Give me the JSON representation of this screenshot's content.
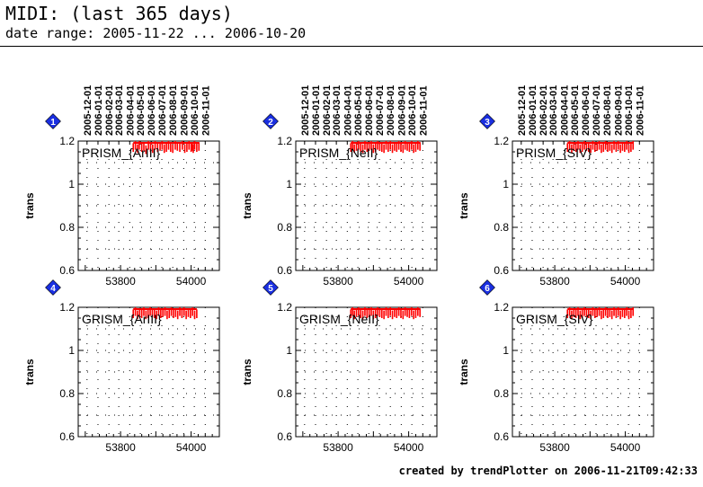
{
  "header": {
    "title": "MIDI: (last 365 days)",
    "subtitle": "date range: 2005-11-22 ... 2006-10-20"
  },
  "footer": {
    "text": "created by trendPlotter on 2006-11-21T09:42:33"
  },
  "colors": {
    "data": "#ff0000",
    "badge": "#1a2fe0",
    "axis": "#000000"
  },
  "chart_data": [
    {
      "type": "scatter",
      "badge": "1",
      "label": "PRISM_{ArIII}",
      "xlabel": "",
      "ylabel": "trans",
      "xlim": [
        53680,
        54080
      ],
      "ylim": [
        0.6,
        1.2
      ],
      "xticks": [
        53800,
        54000
      ],
      "yticks": [
        0.6,
        0.8,
        1,
        1.2
      ],
      "yticklabels": [
        "0.6",
        "0.8",
        "1",
        "1.2"
      ],
      "date_ticks": [
        "2005-12-01",
        "2006-01-01",
        "2006-02-01",
        "2006-03-01",
        "2006-04-01",
        "2006-05-01",
        "2006-06-01",
        "2006-07-01",
        "2006-08-01",
        "2006-09-01",
        "2006-10-01",
        "2006-11-01"
      ],
      "date_tick_mjd": [
        53705,
        53736,
        53767,
        53795,
        53826,
        53856,
        53887,
        53917,
        53948,
        53979,
        54009,
        54040
      ],
      "x": [
        53836,
        53842,
        53848,
        53853,
        53860,
        53866,
        53872,
        53879,
        53885,
        53891,
        53898,
        53905,
        53912,
        53918,
        53924,
        53930,
        53936,
        53942,
        53948,
        53955,
        53961,
        53968,
        53975,
        53982,
        53988,
        53994,
        54000,
        54003,
        54006,
        54010,
        54016,
        54022
      ],
      "y": [
        1.17,
        1.18,
        1.165,
        1.18,
        1.17,
        1.175,
        1.16,
        1.18,
        1.17,
        1.165,
        1.18,
        1.17,
        1.175,
        1.18,
        1.165,
        1.17,
        1.18,
        1.17,
        1.165,
        1.18,
        1.175,
        1.17,
        1.18,
        1.165,
        1.17,
        1.18,
        1.17,
        1.175,
        1.165,
        1.18,
        1.17,
        1.175
      ],
      "grid": true
    },
    {
      "type": "scatter",
      "badge": "2",
      "label": "PRISM_{NeII}",
      "xlabel": "",
      "ylabel": "trans",
      "xlim": [
        53680,
        54080
      ],
      "ylim": [
        0.6,
        1.2
      ],
      "xticks": [
        53800,
        54000
      ],
      "yticks": [
        0.6,
        0.8,
        1,
        1.2
      ],
      "yticklabels": [
        "0.6",
        "0.8",
        "1",
        "1.2"
      ],
      "date_ticks": [
        "2005-12-01",
        "2006-01-01",
        "2006-02-01",
        "2006-03-01",
        "2006-04-01",
        "2006-05-01",
        "2006-06-01",
        "2006-07-01",
        "2006-08-01",
        "2006-09-01",
        "2006-10-01",
        "2006-11-01"
      ],
      "date_tick_mjd": [
        53705,
        53736,
        53767,
        53795,
        53826,
        53856,
        53887,
        53917,
        53948,
        53979,
        54009,
        54040
      ],
      "x": [
        53836,
        53841,
        53846,
        53852,
        53858,
        53864,
        53870,
        53876,
        53882,
        53888,
        53894,
        53900,
        53906,
        53912,
        53918,
        53924,
        53930,
        53936,
        53942,
        53948,
        53954,
        53960,
        53966,
        53972,
        53978,
        53984,
        53990,
        53996,
        54002,
        54008,
        54014,
        54020,
        54026,
        54032
      ],
      "y": [
        1.17,
        1.18,
        1.165,
        1.175,
        1.18,
        1.17,
        1.165,
        1.18,
        1.17,
        1.175,
        1.18,
        1.165,
        1.17,
        1.18,
        1.175,
        1.17,
        1.165,
        1.18,
        1.17,
        1.18,
        1.165,
        1.175,
        1.17,
        1.18,
        1.17,
        1.165,
        1.18,
        1.175,
        1.17,
        1.18,
        1.165,
        1.17,
        1.18,
        1.175
      ],
      "grid": true
    },
    {
      "type": "scatter",
      "badge": "3",
      "label": "PRISM_{SIV}",
      "xlabel": "",
      "ylabel": "trans",
      "xlim": [
        53680,
        54080
      ],
      "ylim": [
        0.6,
        1.2
      ],
      "xticks": [
        53800,
        54000
      ],
      "yticks": [
        0.6,
        0.8,
        1,
        1.2
      ],
      "yticklabels": [
        "0.6",
        "0.8",
        "1",
        "1.2"
      ],
      "date_ticks": [
        "2005-12-01",
        "2006-01-01",
        "2006-02-01",
        "2006-03-01",
        "2006-04-01",
        "2006-05-01",
        "2006-06-01",
        "2006-07-01",
        "2006-08-01",
        "2006-09-01",
        "2006-10-01",
        "2006-11-01"
      ],
      "date_tick_mjd": [
        53705,
        53736,
        53767,
        53795,
        53826,
        53856,
        53887,
        53917,
        53948,
        53979,
        54009,
        54040
      ],
      "x": [
        53836,
        53842,
        53848,
        53854,
        53860,
        53866,
        53872,
        53878,
        53884,
        53890,
        53896,
        53902,
        53908,
        53914,
        53920,
        53926,
        53932,
        53938,
        53944,
        53950,
        53956,
        53962,
        53968,
        53974,
        53980,
        53986,
        53992,
        53998,
        54004,
        54010,
        54016,
        54022
      ],
      "y": [
        1.17,
        1.18,
        1.165,
        1.175,
        1.17,
        1.18,
        1.165,
        1.17,
        1.18,
        1.175,
        1.17,
        1.165,
        1.18,
        1.17,
        1.175,
        1.18,
        1.165,
        1.17,
        1.18,
        1.17,
        1.175,
        1.165,
        1.18,
        1.17,
        1.18,
        1.165,
        1.175,
        1.17,
        1.18,
        1.165,
        1.17,
        1.18
      ],
      "grid": true
    },
    {
      "type": "scatter",
      "badge": "4",
      "label": "GRISM_{ArIII}",
      "xlabel": "",
      "ylabel": "trans",
      "xlim": [
        53680,
        54080
      ],
      "ylim": [
        0.6,
        1.2
      ],
      "xticks": [
        53800,
        54000
      ],
      "yticks": [
        0.6,
        0.8,
        1,
        1.2
      ],
      "yticklabels": [
        "0.6",
        "0.8",
        "1",
        "1.2"
      ],
      "date_ticks": [],
      "date_tick_mjd": [
        53705,
        53736,
        53767,
        53795,
        53826,
        53856,
        53887,
        53917,
        53948,
        53979,
        54009,
        54040
      ],
      "x": [
        53836,
        53842,
        53848,
        53854,
        53860,
        53866,
        53872,
        53878,
        53884,
        53890,
        53896,
        53902,
        53908,
        53914,
        53920,
        53926,
        53932,
        53938,
        53944,
        53950,
        53956,
        53962,
        53968,
        53974,
        53980,
        53986,
        53992,
        53998,
        54004,
        54010,
        54016
      ],
      "y": [
        1.17,
        1.18,
        1.165,
        1.175,
        1.17,
        1.18,
        1.165,
        1.17,
        1.18,
        1.175,
        1.17,
        1.165,
        1.18,
        1.17,
        1.175,
        1.18,
        1.165,
        1.17,
        1.18,
        1.17,
        1.175,
        1.165,
        1.18,
        1.17,
        1.18,
        1.165,
        1.175,
        1.17,
        1.18,
        1.165,
        1.17
      ],
      "grid": true
    },
    {
      "type": "scatter",
      "badge": "5",
      "label": "GRISM_{NeII}",
      "xlabel": "",
      "ylabel": "trans",
      "xlim": [
        53680,
        54080
      ],
      "ylim": [
        0.6,
        1.2
      ],
      "xticks": [
        53800,
        54000
      ],
      "yticks": [
        0.6,
        0.8,
        1,
        1.2
      ],
      "yticklabels": [
        "0.6",
        "0.8",
        "1",
        "1.2"
      ],
      "date_ticks": [],
      "date_tick_mjd": [
        53705,
        53736,
        53767,
        53795,
        53826,
        53856,
        53887,
        53917,
        53948,
        53979,
        54009,
        54040
      ],
      "x": [
        53836,
        53841,
        53846,
        53852,
        53858,
        53864,
        53870,
        53876,
        53882,
        53888,
        53894,
        53900,
        53906,
        53912,
        53918,
        53924,
        53930,
        53936,
        53942,
        53948,
        53954,
        53960,
        53966,
        53972,
        53978,
        53984,
        53990,
        53996,
        54002,
        54008,
        54014,
        54020,
        54026,
        54032
      ],
      "y": [
        1.17,
        1.18,
        1.165,
        1.175,
        1.18,
        1.17,
        1.165,
        1.18,
        1.17,
        1.175,
        1.18,
        1.165,
        1.17,
        1.18,
        1.175,
        1.17,
        1.165,
        1.18,
        1.17,
        1.18,
        1.165,
        1.175,
        1.17,
        1.18,
        1.17,
        1.165,
        1.18,
        1.175,
        1.17,
        1.18,
        1.165,
        1.17,
        1.18,
        1.175
      ],
      "grid": true
    },
    {
      "type": "scatter",
      "badge": "6",
      "label": "GRISM_{SIV}",
      "xlabel": "",
      "ylabel": "trans",
      "xlim": [
        53680,
        54080
      ],
      "ylim": [
        0.6,
        1.2
      ],
      "xticks": [
        53800,
        54000
      ],
      "yticks": [
        0.6,
        0.8,
        1,
        1.2
      ],
      "yticklabels": [
        "0.6",
        "0.8",
        "1",
        "1.2"
      ],
      "date_ticks": [],
      "date_tick_mjd": [
        53705,
        53736,
        53767,
        53795,
        53826,
        53856,
        53887,
        53917,
        53948,
        53979,
        54009,
        54040
      ],
      "x": [
        53836,
        53842,
        53848,
        53854,
        53860,
        53866,
        53872,
        53878,
        53884,
        53890,
        53896,
        53902,
        53908,
        53914,
        53920,
        53926,
        53932,
        53938,
        53944,
        53950,
        53956,
        53962,
        53968,
        53974,
        53980,
        53986,
        53992,
        53998,
        54004,
        54010,
        54016,
        54022
      ],
      "y": [
        1.17,
        1.18,
        1.165,
        1.175,
        1.17,
        1.18,
        1.165,
        1.17,
        1.18,
        1.175,
        1.17,
        1.165,
        1.18,
        1.17,
        1.175,
        1.18,
        1.165,
        1.17,
        1.18,
        1.17,
        1.175,
        1.165,
        1.18,
        1.17,
        1.18,
        1.165,
        1.175,
        1.17,
        1.18,
        1.165,
        1.17,
        1.18
      ],
      "grid": true
    }
  ]
}
